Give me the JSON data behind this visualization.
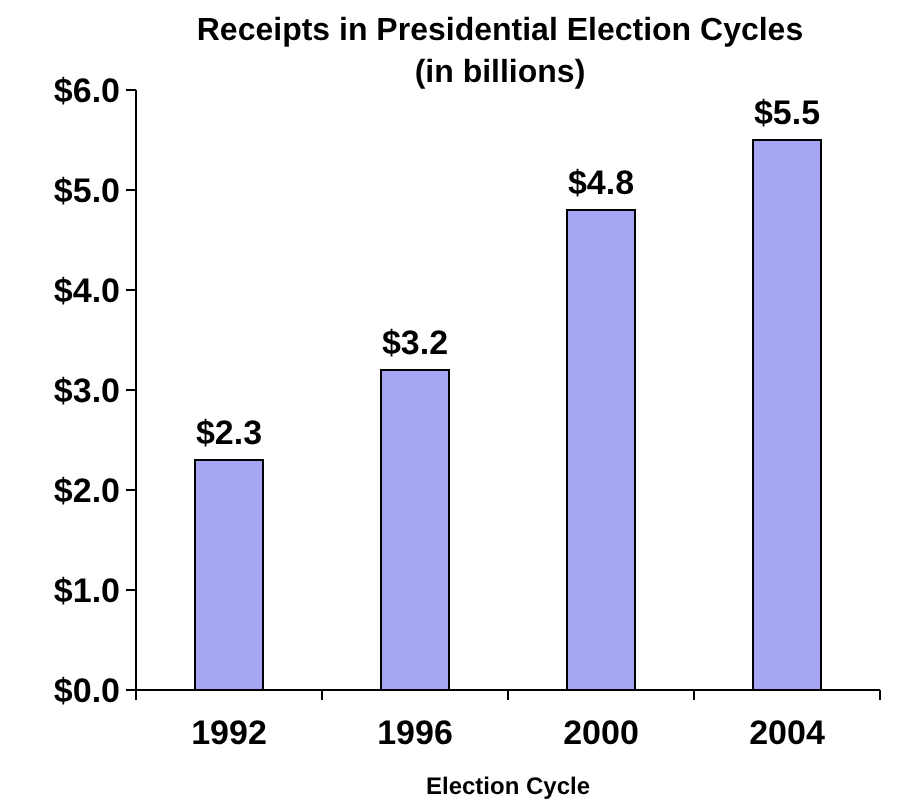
{
  "chart_data": {
    "type": "bar",
    "title": "Receipts in Presidential Election Cycles",
    "subtitle": "(in billions)",
    "xlabel": "Election Cycle",
    "categories": [
      "1992",
      "1996",
      "2000",
      "2004"
    ],
    "values": [
      2.3,
      3.2,
      4.8,
      5.5
    ],
    "color": "#a6a6f5",
    "value_labels": [
      "$2.3",
      "$3.2",
      "$4.8",
      "$5.5"
    ],
    "ylim": [
      0,
      6
    ],
    "yticks": [
      {
        "value": 0,
        "label": "$0.0"
      },
      {
        "value": 1,
        "label": "$1.0"
      },
      {
        "value": 2,
        "label": "$2.0"
      },
      {
        "value": 3,
        "label": "$3.0"
      },
      {
        "value": 4,
        "label": "$4.0"
      },
      {
        "value": 5,
        "label": "$5.0"
      },
      {
        "value": 6,
        "label": "$6.0"
      }
    ],
    "grid": false
  }
}
